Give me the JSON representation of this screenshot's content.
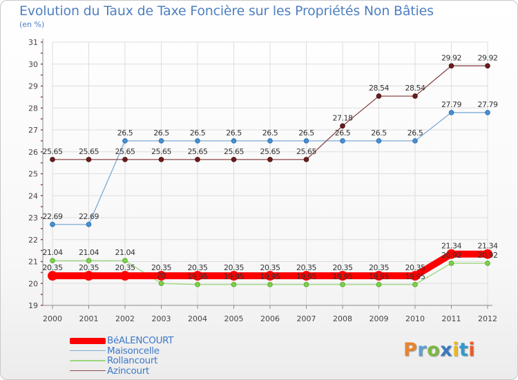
{
  "chart_data": {
    "type": "line",
    "title": "Evolution du Taux de Taxe Foncière sur les Propriétés Non Bâties",
    "subtitle": "(en %)",
    "xlabel": "",
    "ylabel": "",
    "x": [
      "2000",
      "2001",
      "2002",
      "2003",
      "2004",
      "2005",
      "2006",
      "2007",
      "2008",
      "2009",
      "2010",
      "2011",
      "2012"
    ],
    "ylim": [
      19,
      31
    ],
    "yticks": [
      "19",
      "20",
      "21",
      "22",
      "23",
      "24",
      "25",
      "26",
      "27",
      "28",
      "29",
      "30",
      "31"
    ],
    "series": [
      {
        "name": "BéALENCOURT",
        "color": "#ff0000",
        "values": [
          20.35,
          20.35,
          20.35,
          20.35,
          20.35,
          20.35,
          20.35,
          20.35,
          20.35,
          20.35,
          20.35,
          21.34,
          21.34
        ],
        "labels": [
          "20.35",
          "20.35",
          "20.35",
          "20.35",
          "20.35",
          "20.35",
          "20.35",
          "20.35",
          "20.35",
          "20.35",
          "20.35",
          "21.34",
          "21.34"
        ]
      },
      {
        "name": "Maisoncelle",
        "color": "#7aaad6",
        "values": [
          22.69,
          22.69,
          26.5,
          26.5,
          26.5,
          26.5,
          26.5,
          26.5,
          26.5,
          26.5,
          26.5,
          27.79,
          27.79
        ],
        "labels": [
          "22.69",
          "22.69",
          "26.5",
          "26.5",
          "26.5",
          "26.5",
          "26.5",
          "26.5",
          "26.5",
          "26.5",
          "26.5",
          "27.79",
          "27.79"
        ]
      },
      {
        "name": "Rollancourt",
        "color": "#9ad77a",
        "values": [
          21.04,
          21.04,
          21.04,
          20,
          19.95,
          19.95,
          19.95,
          19.95,
          19.95,
          19.95,
          19.95,
          20.92,
          20.92
        ],
        "labels": [
          "21.04",
          "21.04",
          "21.04",
          "20",
          "19.95",
          "19.95",
          "19.95",
          "19.95",
          "19.95",
          "19.95",
          "19.95",
          "20.92",
          "20.92"
        ]
      },
      {
        "name": "Azincourt",
        "color": "#8a4848",
        "values": [
          25.65,
          25.65,
          25.65,
          25.65,
          25.65,
          25.65,
          25.65,
          25.65,
          27.18,
          28.54,
          28.54,
          29.92,
          29.92
        ],
        "labels": [
          "25.65",
          "25.65",
          "25.65",
          "25.65",
          "25.65",
          "25.65",
          "25.65",
          "25.65",
          "27.18",
          "28.54",
          "28.54",
          "29.92",
          "29.92"
        ]
      }
    ]
  },
  "logo": {
    "letters": [
      "P",
      "r",
      "o",
      "x",
      "i",
      "t",
      "i"
    ],
    "colors": [
      "#e8842a",
      "#5aa0d8",
      "#7cb843",
      "#3a78c0",
      "#e8b82a",
      "#2f9ad0",
      "#e85a2a"
    ]
  }
}
